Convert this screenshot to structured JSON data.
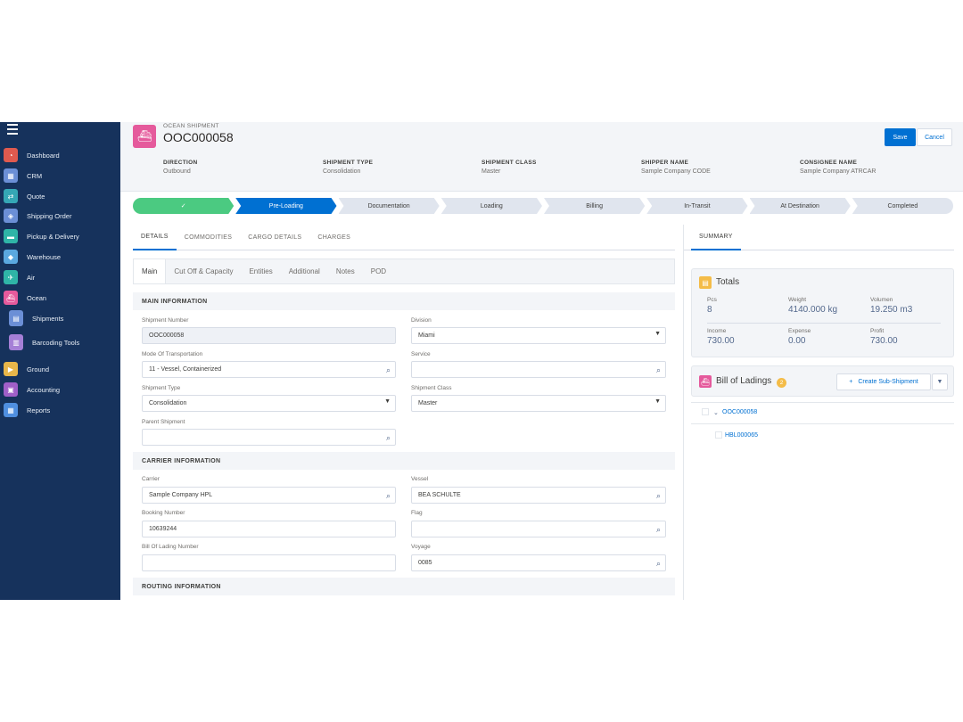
{
  "sidebar": {
    "items": [
      {
        "label": "Dashboard",
        "icon": "dashboard-icon",
        "color": "#e05a4f"
      },
      {
        "label": "CRM",
        "icon": "crm-icon",
        "color": "#6b8fd6"
      },
      {
        "label": "Quote",
        "icon": "quote-icon",
        "color": "#35a7b5"
      },
      {
        "label": "Shipping Order",
        "icon": "shipping-order-icon",
        "color": "#6b8fd6"
      },
      {
        "label": "Pickup & Delivery",
        "icon": "pickup-delivery-icon",
        "color": "#2fb5a7"
      },
      {
        "label": "Warehouse",
        "icon": "warehouse-icon",
        "color": "#5aa8e0"
      },
      {
        "label": "Air",
        "icon": "air-icon",
        "color": "#2fb5a7"
      },
      {
        "label": "Ocean",
        "icon": "ocean-icon",
        "color": "#e55a9c"
      },
      {
        "label": "Shipments",
        "icon": "shipments-icon",
        "color": "#6b8fd6"
      },
      {
        "label": "Barcoding Tools",
        "icon": "barcoding-icon",
        "color": "#a57fd6"
      },
      {
        "label": "Ground",
        "icon": "ground-icon",
        "color": "#e8b64a"
      },
      {
        "label": "Accounting",
        "icon": "accounting-icon",
        "color": "#a05fc8"
      },
      {
        "label": "Reports",
        "icon": "reports-icon",
        "color": "#4f8fe0"
      }
    ]
  },
  "header": {
    "kicker": "OCEAN SHIPMENT",
    "title": "OOC000058",
    "save_label": "Save",
    "cancel_label": "Cancel",
    "fields": [
      {
        "label": "DIRECTION",
        "value": "Outbound"
      },
      {
        "label": "SHIPMENT TYPE",
        "value": "Consolidation"
      },
      {
        "label": "SHIPMENT CLASS",
        "value": "Master"
      },
      {
        "label": "SHIPPER NAME",
        "value": "Sample Company CODE"
      },
      {
        "label": "CONSIGNEE NAME",
        "value": "Sample Company ATRCAR"
      }
    ]
  },
  "path": {
    "complete_mark": "✓",
    "stages": [
      "",
      "Pre-Loading",
      "Documentation",
      "Loading",
      "Billing",
      "In-Transit",
      "At Destination",
      "Completed"
    ]
  },
  "tabs": [
    "DETAILS",
    "COMMODITIES",
    "CARGO DETAILS",
    "CHARGES"
  ],
  "subtabs": [
    "Main",
    "Cut Off & Capacity",
    "Entities",
    "Additional",
    "Notes",
    "POD"
  ],
  "sections": {
    "main": "MAIN INFORMATION",
    "carrier": "CARRIER INFORMATION",
    "routing": "ROUTING INFORMATION"
  },
  "form": {
    "shipment_number": {
      "label": "Shipment Number",
      "value": "OOC000058"
    },
    "division": {
      "label": "Division",
      "value": "Miami"
    },
    "mode": {
      "label": "Mode Of Transportation",
      "value": "11 - Vessel, Containerized"
    },
    "service": {
      "label": "Service",
      "value": ""
    },
    "shipment_type": {
      "label": "Shipment Type",
      "value": "Consolidation"
    },
    "shipment_class": {
      "label": "Shipment Class",
      "value": "Master"
    },
    "parent_shipment": {
      "label": "Parent Shipment",
      "value": ""
    },
    "carrier": {
      "label": "Carrier",
      "value": "Sample Company HPL"
    },
    "vessel": {
      "label": "Vessel",
      "value": "BEA SCHULTE"
    },
    "booking_number": {
      "label": "Booking Number",
      "value": "10639244"
    },
    "flag": {
      "label": "Flag",
      "value": ""
    },
    "bol_number": {
      "label": "Bill Of Lading Number",
      "value": ""
    },
    "voyage": {
      "label": "Voyage",
      "value": "0085"
    }
  },
  "summary": {
    "tab": "SUMMARY",
    "totals": {
      "title": "Totals",
      "pcs": {
        "label": "Pcs",
        "value": "8"
      },
      "weight": {
        "label": "Weight",
        "value": "4140.000 kg"
      },
      "volumen": {
        "label": "Volumen",
        "value": "19.250 m3"
      },
      "income": {
        "label": "Income",
        "value": "730.00"
      },
      "expense": {
        "label": "Expense",
        "value": "0.00"
      },
      "profit": {
        "label": "Profit",
        "value": "730.00"
      }
    },
    "bol": {
      "title": "Bill of Ladings",
      "count": "2",
      "create_label": "Create Sub-Shipment",
      "items": [
        "OOC000058",
        "HBL000065"
      ]
    }
  },
  "colors": {
    "sidebar_bg": "#16325c",
    "brand": "#0070d2",
    "complete": "#4bca81",
    "ocean_icon": "#e55a9c"
  }
}
